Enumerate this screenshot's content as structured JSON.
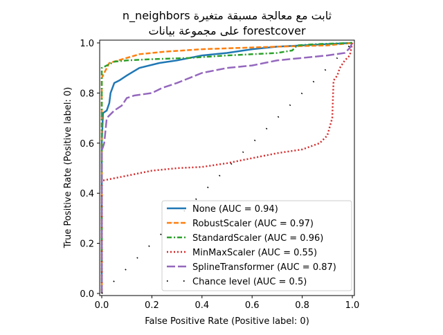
{
  "chart_data": {
    "type": "line",
    "title": [
      "n_neighbors ثابت مع معالجة مسبقة متغيرة",
      "على مجموعة بيانات forestcover"
    ],
    "xlabel": "False Positive Rate (Positive label: 0)",
    "ylabel": "True Positive Rate (Positive label: 0)",
    "xlim": [
      0,
      1
    ],
    "ylim": [
      0,
      1
    ],
    "xticks": [
      "0.0",
      "0.2",
      "0.4",
      "0.6",
      "0.8",
      "1.0"
    ],
    "yticks": [
      "0.0",
      "0.2",
      "0.4",
      "0.6",
      "0.8",
      "1.0"
    ],
    "grid": false,
    "legend_position": "lower-right",
    "series": [
      {
        "name": "None (AUC = 0.94)",
        "color": "#1f77b4",
        "style": "solid",
        "x": [
          0,
          0,
          0.005,
          0.02,
          0.03,
          0.035,
          0.05,
          0.07,
          0.1,
          0.15,
          0.23,
          0.3,
          0.4,
          0.5,
          0.6,
          0.7,
          0.8,
          0.9,
          1
        ],
        "y": [
          0,
          0.6,
          0.72,
          0.73,
          0.76,
          0.8,
          0.84,
          0.85,
          0.87,
          0.9,
          0.92,
          0.93,
          0.95,
          0.96,
          0.975,
          0.985,
          0.99,
          0.995,
          1
        ]
      },
      {
        "name": "RobustScaler (AUC = 0.97)",
        "color": "#ff7f0e",
        "style": "dashed",
        "x": [
          0,
          0,
          0.01,
          0.03,
          0.1,
          0.15,
          0.25,
          0.4,
          0.55,
          0.7,
          0.9,
          1
        ],
        "y": [
          0,
          0.86,
          0.88,
          0.92,
          0.94,
          0.955,
          0.965,
          0.975,
          0.98,
          0.985,
          0.99,
          1
        ]
      },
      {
        "name": "StandardScaler (AUC = 0.96)",
        "color": "#2ca02c",
        "style": "dashdot",
        "x": [
          0,
          0,
          0.02,
          0.05,
          0.1,
          0.2,
          0.35,
          0.5,
          0.6,
          0.7,
          0.76,
          0.78,
          0.85,
          1
        ],
        "y": [
          0,
          0.9,
          0.91,
          0.925,
          0.93,
          0.935,
          0.94,
          0.95,
          0.955,
          0.96,
          0.97,
          0.99,
          0.995,
          1
        ]
      },
      {
        "name": "MinMaxScaler (AUC = 0.55)",
        "color": "#d62728",
        "style": "dotted",
        "x": [
          0,
          0,
          0.05,
          0.1,
          0.2,
          0.3,
          0.4,
          0.5,
          0.6,
          0.7,
          0.8,
          0.87,
          0.9,
          0.92,
          0.925,
          0.94,
          0.95,
          0.97,
          0.99,
          1
        ],
        "y": [
          0,
          0.45,
          0.46,
          0.47,
          0.49,
          0.5,
          0.505,
          0.52,
          0.54,
          0.56,
          0.575,
          0.6,
          0.63,
          0.7,
          0.85,
          0.87,
          0.9,
          0.93,
          0.95,
          1
        ]
      },
      {
        "name": "SplineTransformer (AUC = 0.87)",
        "color": "#9467bd",
        "style": "longdash",
        "x": [
          0,
          0,
          0.01,
          0.02,
          0.05,
          0.08,
          0.1,
          0.13,
          0.2,
          0.24,
          0.3,
          0.35,
          0.4,
          0.5,
          0.6,
          0.7,
          0.8,
          0.9,
          0.97,
          0.99,
          1
        ],
        "y": [
          0,
          0.57,
          0.6,
          0.7,
          0.73,
          0.75,
          0.78,
          0.79,
          0.8,
          0.82,
          0.84,
          0.86,
          0.88,
          0.9,
          0.91,
          0.93,
          0.94,
          0.95,
          0.96,
          0.98,
          1
        ]
      },
      {
        "name": "Chance level (AUC = 0.5)",
        "color": "#000000",
        "style": "dots",
        "x": [
          0,
          1
        ],
        "y": [
          0,
          1
        ]
      }
    ]
  }
}
